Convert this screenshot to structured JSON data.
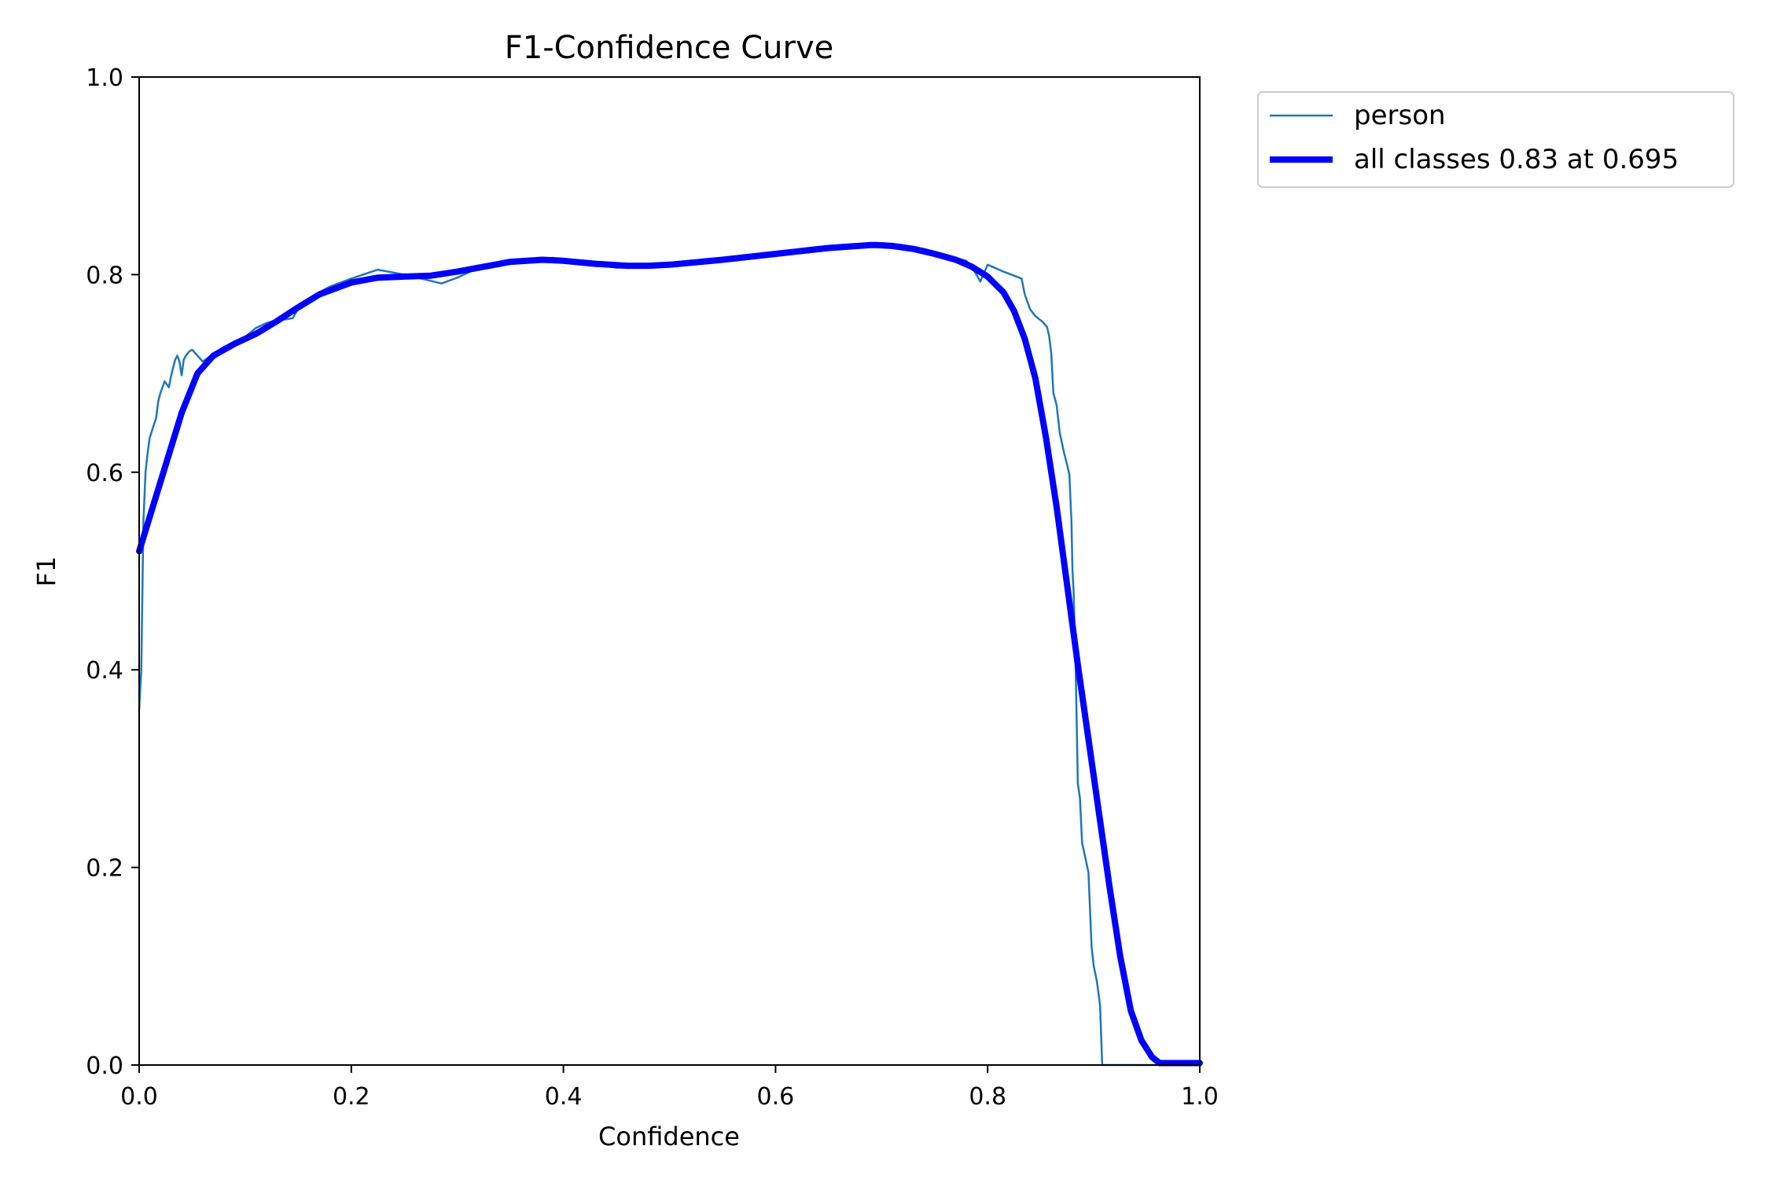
{
  "chart_data": {
    "type": "line",
    "title": "F1-Confidence Curve",
    "xlabel": "Confidence",
    "ylabel": "F1",
    "xlim": [
      0,
      1
    ],
    "ylim": [
      0,
      1
    ],
    "xticks": [
      "0.0",
      "0.2",
      "0.4",
      "0.6",
      "0.8",
      "1.0"
    ],
    "yticks": [
      "0.0",
      "0.2",
      "0.4",
      "0.6",
      "0.8",
      "1.0"
    ],
    "grid": false,
    "legend_position": "outside-top-right",
    "series": [
      {
        "name": "person",
        "color": "#1f77b4",
        "x": [
          0.0,
          0.002,
          0.004,
          0.006,
          0.008,
          0.01,
          0.013,
          0.016,
          0.018,
          0.02,
          0.024,
          0.028,
          0.03,
          0.032,
          0.034,
          0.036,
          0.038,
          0.04,
          0.042,
          0.044,
          0.047,
          0.05,
          0.055,
          0.06,
          0.07,
          0.08,
          0.09,
          0.1,
          0.11,
          0.12,
          0.13,
          0.14,
          0.145,
          0.15,
          0.16,
          0.17,
          0.18,
          0.2,
          0.225,
          0.25,
          0.27,
          0.285,
          0.3,
          0.32,
          0.35,
          0.37,
          0.39,
          0.42,
          0.45,
          0.48,
          0.5,
          0.55,
          0.6,
          0.65,
          0.7,
          0.72,
          0.74,
          0.76,
          0.78,
          0.785,
          0.79,
          0.793,
          0.8,
          0.815,
          0.832,
          0.835,
          0.84,
          0.845,
          0.852,
          0.856,
          0.858,
          0.86,
          0.862,
          0.865,
          0.868,
          0.872,
          0.875,
          0.877,
          0.879,
          0.88,
          0.881,
          0.883,
          0.885,
          0.887,
          0.889,
          0.891,
          0.893,
          0.895,
          0.898,
          0.9,
          0.903,
          0.906,
          0.908,
          0.911,
          0.913,
          0.93,
          0.95,
          0.97,
          1.0
        ],
        "values": [
          0.36,
          0.4,
          0.55,
          0.6,
          0.62,
          0.635,
          0.645,
          0.655,
          0.672,
          0.68,
          0.692,
          0.686,
          0.697,
          0.706,
          0.714,
          0.718,
          0.712,
          0.698,
          0.714,
          0.718,
          0.722,
          0.724,
          0.718,
          0.712,
          0.72,
          0.727,
          0.732,
          0.737,
          0.746,
          0.751,
          0.754,
          0.755,
          0.756,
          0.766,
          0.775,
          0.782,
          0.788,
          0.796,
          0.805,
          0.8,
          0.795,
          0.791,
          0.797,
          0.807,
          0.813,
          0.814,
          0.817,
          0.812,
          0.807,
          0.808,
          0.81,
          0.815,
          0.822,
          0.828,
          0.832,
          0.83,
          0.826,
          0.82,
          0.814,
          0.808,
          0.799,
          0.793,
          0.81,
          0.803,
          0.796,
          0.78,
          0.765,
          0.758,
          0.752,
          0.747,
          0.738,
          0.72,
          0.68,
          0.668,
          0.64,
          0.62,
          0.607,
          0.598,
          0.55,
          0.5,
          0.48,
          0.4,
          0.285,
          0.27,
          0.225,
          0.215,
          0.205,
          0.195,
          0.12,
          0.1,
          0.085,
          0.06,
          0.0,
          0.0,
          0.0,
          0.0,
          0.0,
          0.0,
          0.0
        ]
      },
      {
        "name": "all classes 0.83 at 0.695",
        "color": "#0000ff",
        "x": [
          0.0,
          0.02,
          0.04,
          0.055,
          0.07,
          0.09,
          0.11,
          0.13,
          0.15,
          0.17,
          0.2,
          0.225,
          0.25,
          0.275,
          0.3,
          0.32,
          0.35,
          0.38,
          0.4,
          0.43,
          0.46,
          0.48,
          0.5,
          0.55,
          0.6,
          0.65,
          0.69,
          0.695,
          0.71,
          0.73,
          0.75,
          0.77,
          0.785,
          0.8,
          0.815,
          0.825,
          0.835,
          0.845,
          0.855,
          0.865,
          0.875,
          0.885,
          0.895,
          0.905,
          0.915,
          0.925,
          0.935,
          0.945,
          0.955,
          0.962,
          0.97,
          1.0
        ],
        "values": [
          0.52,
          0.59,
          0.66,
          0.7,
          0.718,
          0.73,
          0.74,
          0.753,
          0.767,
          0.78,
          0.792,
          0.797,
          0.798,
          0.799,
          0.803,
          0.807,
          0.813,
          0.815,
          0.814,
          0.811,
          0.809,
          0.809,
          0.81,
          0.815,
          0.821,
          0.827,
          0.83,
          0.83,
          0.829,
          0.826,
          0.821,
          0.815,
          0.808,
          0.798,
          0.782,
          0.763,
          0.735,
          0.695,
          0.635,
          0.565,
          0.485,
          0.405,
          0.33,
          0.255,
          0.18,
          0.11,
          0.055,
          0.025,
          0.008,
          0.002,
          0.002,
          0.002
        ]
      }
    ],
    "legend": [
      {
        "label": "person",
        "color": "#1f77b4"
      },
      {
        "label": "all classes 0.83 at 0.695",
        "color": "#0000ff"
      }
    ]
  }
}
